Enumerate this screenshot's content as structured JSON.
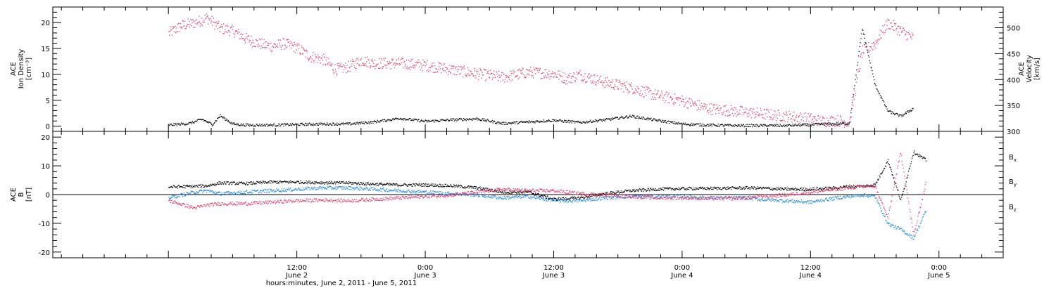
{
  "chart_data": [
    {
      "type": "scatter",
      "panel": "top",
      "ylabel_left": [
        "ACE",
        "Ion Density",
        "[cm⁻³]"
      ],
      "ylabel_right": [
        "ACE",
        "Velocity",
        "[km/s]"
      ],
      "ylim_left": [
        -1,
        23
      ],
      "ylim_right": [
        300,
        540
      ],
      "yticks_left": [
        "0",
        "5",
        "10",
        "15",
        "20"
      ],
      "yticks_right": [
        "300",
        "350",
        "400",
        "450",
        "500"
      ],
      "series": [
        {
          "name": "",
          "axis": "left",
          "color": "#000000",
          "x": [
            0.0,
            0.08,
            0.13,
            0.17,
            0.2,
            0.25,
            0.3,
            0.4,
            0.5,
            0.6,
            0.7,
            0.8,
            0.9,
            1.0,
            1.1,
            1.2,
            1.3,
            1.4,
            1.5,
            1.6,
            1.7,
            1.8,
            1.9,
            2.0,
            2.1,
            2.2,
            2.3,
            2.4,
            2.45,
            2.5,
            2.52,
            2.55,
            2.6,
            2.65,
            2.7,
            2.75,
            2.8,
            2.85,
            2.9
          ],
          "y": [
            0.3,
            0.6,
            1.4,
            0.4,
            2.1,
            0.5,
            0.3,
            0.3,
            0.4,
            0.5,
            0.5,
            0.9,
            1.6,
            1.0,
            1.3,
            1.5,
            0.6,
            0.9,
            1.2,
            0.8,
            1.3,
            2.0,
            1.2,
            0.5,
            0.3,
            0.2,
            0.2,
            0.2,
            0.3,
            0.3,
            0.4,
            0.5,
            0.5,
            0.6,
            19.0,
            8.0,
            3.0,
            2.0,
            3.5
          ]
        },
        {
          "name": "",
          "axis": "right",
          "color": "#e63c6e",
          "x": [
            0.0,
            0.05,
            0.1,
            0.15,
            0.2,
            0.25,
            0.3,
            0.35,
            0.4,
            0.45,
            0.5,
            0.55,
            0.6,
            0.65,
            0.7,
            0.75,
            0.8,
            0.9,
            1.0,
            1.1,
            1.2,
            1.3,
            1.4,
            1.5,
            1.55,
            1.6,
            1.7,
            1.8,
            1.9,
            2.0,
            2.05,
            2.1,
            2.2,
            2.3,
            2.4,
            2.45,
            2.5,
            2.55,
            2.6,
            2.65,
            2.7,
            2.75,
            2.8,
            2.85,
            2.9
          ],
          "y": [
            490,
            505,
            510,
            520,
            500,
            495,
            480,
            470,
            465,
            470,
            462,
            445,
            440,
            420,
            425,
            438,
            432,
            432,
            428,
            420,
            412,
            405,
            415,
            412,
            402,
            410,
            395,
            385,
            370,
            360,
            352,
            345,
            340,
            335,
            330,
            328,
            325,
            320,
            322,
            318,
            455,
            470,
            510,
            495,
            480
          ]
        }
      ]
    },
    {
      "type": "scatter",
      "panel": "bottom",
      "ylabel": [
        "ACE",
        "B",
        "[nT]"
      ],
      "ylim": [
        -22,
        22
      ],
      "yticks": [
        "-20",
        "-10",
        "0",
        "10",
        "20"
      ],
      "xlabel": "hours:minutes, June  2, 2011 - June  5, 2011",
      "x_ticks": [
        {
          "x": 0.5,
          "time": "12:00",
          "date": "June 2"
        },
        {
          "x": 1.0,
          "time": "0:00",
          "date": "June 3"
        },
        {
          "x": 1.5,
          "time": "12:00",
          "date": "June 3"
        },
        {
          "x": 2.0,
          "time": "0:00",
          "date": "June 4"
        },
        {
          "x": 2.5,
          "time": "12:00",
          "date": "June 4"
        },
        {
          "x": 3.0,
          "time": "0:00",
          "date": "June 5"
        }
      ],
      "xlim": [
        -0.45,
        3.25
      ],
      "series": [
        {
          "name": "B",
          "sub": "x",
          "color": "#000000",
          "x": [
            0.0,
            0.1,
            0.15,
            0.2,
            0.3,
            0.4,
            0.5,
            0.6,
            0.7,
            0.8,
            0.9,
            1.0,
            1.1,
            1.2,
            1.3,
            1.4,
            1.5,
            1.6,
            1.7,
            1.8,
            1.9,
            2.0,
            2.1,
            2.2,
            2.25,
            2.3,
            2.4,
            2.5,
            2.6,
            2.65,
            2.7,
            2.75,
            2.8,
            2.85,
            2.9,
            2.95
          ],
          "y": [
            2.8,
            3.0,
            3.2,
            4.2,
            4.0,
            4.5,
            4.5,
            4.3,
            4.2,
            3.8,
            3.5,
            3.5,
            3.2,
            2.5,
            1.0,
            1.0,
            -1.5,
            -1.0,
            0.5,
            1.5,
            2.0,
            2.2,
            2.3,
            2.4,
            2.5,
            2.4,
            2.0,
            2.0,
            2.5,
            3.0,
            3.0,
            3.5,
            12.0,
            -2.0,
            15.0,
            12.0
          ]
        },
        {
          "name": "B",
          "sub": "y",
          "color": "#1e88e5",
          "x": [
            0.0,
            0.1,
            0.15,
            0.2,
            0.3,
            0.4,
            0.5,
            0.6,
            0.7,
            0.8,
            0.9,
            1.0,
            1.1,
            1.2,
            1.3,
            1.4,
            1.5,
            1.6,
            1.7,
            1.8,
            1.9,
            2.0,
            2.1,
            2.2,
            2.25,
            2.3,
            2.4,
            2.5,
            2.6,
            2.65,
            2.7,
            2.75,
            2.8,
            2.85,
            2.9,
            2.95
          ],
          "y": [
            -1.0,
            1.0,
            1.5,
            0.5,
            1.0,
            1.5,
            2.0,
            2.5,
            2.5,
            2.0,
            1.5,
            1.0,
            0.5,
            0.0,
            -1.0,
            -0.5,
            -2.0,
            -2.0,
            -1.0,
            -0.5,
            -0.5,
            -0.5,
            -1.0,
            -1.0,
            -1.0,
            -1.5,
            -2.0,
            -2.5,
            -1.0,
            -0.5,
            0.0,
            -0.5,
            -10.0,
            -12.0,
            -15.0,
            -5.0
          ]
        },
        {
          "name": "B",
          "sub": "z",
          "color": "#e63c6e",
          "x": [
            0.0,
            0.1,
            0.15,
            0.2,
            0.3,
            0.4,
            0.5,
            0.6,
            0.7,
            0.8,
            0.9,
            1.0,
            1.1,
            1.2,
            1.3,
            1.4,
            1.5,
            1.6,
            1.7,
            1.8,
            1.9,
            2.0,
            2.1,
            2.2,
            2.25,
            2.3,
            2.4,
            2.5,
            2.6,
            2.65,
            2.7,
            2.75,
            2.8,
            2.85,
            2.9,
            2.95
          ],
          "y": [
            -2.0,
            -4.5,
            -3.5,
            -3.0,
            -3.0,
            -2.5,
            -2.0,
            -1.8,
            -2.0,
            -1.5,
            -1.0,
            -0.5,
            0.0,
            1.0,
            2.0,
            1.5,
            1.5,
            0.5,
            0.0,
            -0.5,
            -1.0,
            -1.0,
            -1.2,
            -1.2,
            -1.0,
            -0.5,
            0.0,
            1.0,
            2.0,
            2.5,
            3.0,
            3.0,
            -8.0,
            15.0,
            -14.0,
            5.0
          ]
        }
      ]
    }
  ]
}
